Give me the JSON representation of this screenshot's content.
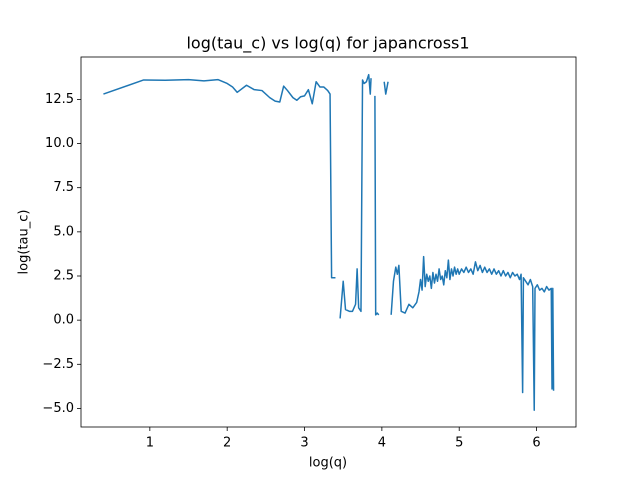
{
  "chart_data": {
    "type": "line",
    "title": "log(tau_c) vs log(q) for japancross1",
    "x_label": "log(q)",
    "y_label": "log(tau_c)",
    "color": "#1f77b4",
    "xlim": [
      0.11,
      6.51
    ],
    "ylim": [
      -6.05,
      14.9
    ],
    "xticks": [
      1,
      2,
      3,
      4,
      5,
      6
    ],
    "yticks": [
      {
        "value": -5,
        "label": "−5.0"
      },
      {
        "value": -2.5,
        "label": "−2.5"
      },
      {
        "value": 0,
        "label": "0.0"
      },
      {
        "value": 2.5,
        "label": "2.5"
      },
      {
        "value": 5,
        "label": "5.0"
      },
      {
        "value": 7.5,
        "label": "7.5"
      },
      {
        "value": 10,
        "label": "10.0"
      },
      {
        "value": 12.5,
        "label": "12.5"
      }
    ],
    "x": [
      0.4,
      0.92,
      1.2,
      1.5,
      1.7,
      1.88,
      2.0,
      2.07,
      2.13,
      2.25,
      2.35,
      2.45,
      2.55,
      2.62,
      2.68,
      2.73,
      2.78,
      2.85,
      2.9,
      2.95,
      3.0,
      3.05,
      3.1,
      3.15,
      3.2,
      3.25,
      3.3,
      3.33,
      3.35,
      3.4,
      3.43,
      3.46,
      3.5,
      3.53,
      3.58,
      3.62,
      3.66,
      3.68,
      3.7,
      3.73,
      3.75,
      3.77,
      3.8,
      3.83,
      3.85,
      3.86,
      3.88,
      3.91,
      3.92,
      3.94,
      3.96,
      4.0,
      4.03,
      4.05,
      4.08,
      4.1,
      4.12,
      4.15,
      4.18,
      4.2,
      4.22,
      4.25,
      4.3,
      4.35,
      4.4,
      4.45,
      4.48,
      4.5,
      4.52,
      4.54,
      4.56,
      4.58,
      4.6,
      4.62,
      4.64,
      4.66,
      4.68,
      4.7,
      4.72,
      4.74,
      4.76,
      4.78,
      4.8,
      4.82,
      4.84,
      4.86,
      4.88,
      4.9,
      4.92,
      4.94,
      4.96,
      4.98,
      5.0,
      5.03,
      5.06,
      5.09,
      5.12,
      5.15,
      5.18,
      5.21,
      5.24,
      5.27,
      5.3,
      5.33,
      5.36,
      5.39,
      5.42,
      5.45,
      5.48,
      5.51,
      5.54,
      5.57,
      5.6,
      5.63,
      5.66,
      5.69,
      5.72,
      5.75,
      5.78,
      5.8,
      5.82,
      5.83,
      5.86,
      5.89,
      5.92,
      5.95,
      5.97,
      5.98,
      6.01,
      6.04,
      6.07,
      6.1,
      6.13,
      6.16,
      6.19,
      6.2,
      6.21,
      6.22
    ],
    "values": [
      12.8,
      13.6,
      13.58,
      13.62,
      13.55,
      13.62,
      13.4,
      13.2,
      12.9,
      13.3,
      13.05,
      13.0,
      12.6,
      12.4,
      12.35,
      13.25,
      13.0,
      12.6,
      12.45,
      12.65,
      12.7,
      13.05,
      12.25,
      13.5,
      13.2,
      13.2,
      13.0,
      12.8,
      2.4,
      2.4,
      null,
      0.1,
      2.2,
      0.6,
      0.5,
      0.5,
      0.9,
      2.9,
      0.7,
      0.5,
      13.6,
      13.4,
      13.5,
      13.9,
      12.8,
      13.7,
      null,
      12.7,
      0.3,
      0.4,
      0.3,
      null,
      13.5,
      12.8,
      13.5,
      null,
      0.3,
      2.2,
      3.0,
      2.6,
      3.1,
      0.5,
      0.4,
      0.9,
      0.7,
      1.0,
      1.6,
      2.3,
      1.7,
      3.6,
      1.9,
      2.6,
      2.2,
      2.5,
      1.8,
      2.7,
      2.1,
      2.6,
      2.2,
      2.9,
      2.3,
      2.5,
      2.0,
      2.8,
      2.4,
      3.4,
      2.3,
      2.9,
      2.5,
      3.0,
      2.6,
      2.9,
      2.6,
      2.9,
      2.7,
      3.0,
      2.7,
      2.9,
      2.6,
      3.3,
      2.8,
      3.1,
      2.7,
      3.0,
      2.7,
      2.9,
      2.6,
      2.9,
      2.6,
      2.8,
      2.5,
      2.8,
      2.5,
      2.7,
      2.4,
      2.7,
      2.5,
      2.6,
      2.3,
      2.6,
      -4.1,
      2.4,
      2.2,
      2.0,
      2.3,
      1.9,
      -5.1,
      1.8,
      2.0,
      1.7,
      1.8,
      1.6,
      1.9,
      1.7,
      1.8,
      -3.9,
      1.8,
      -4.0
    ]
  }
}
